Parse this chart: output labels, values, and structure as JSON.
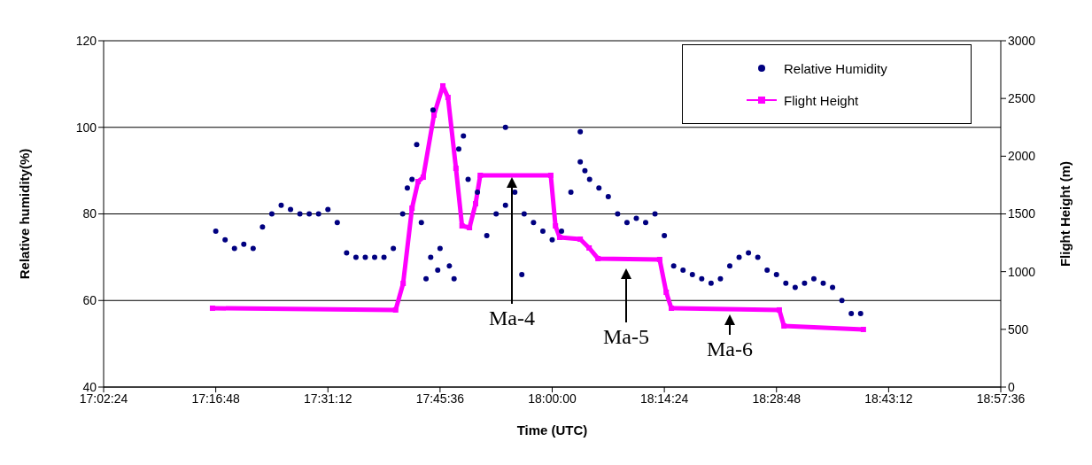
{
  "chart_data": {
    "type": "scatter",
    "xlabel": "Time (UTC)",
    "ylabel": "Relative humidity(%)",
    "y2label": "Flight Height (m)",
    "xlim": [
      17.04,
      18.96
    ],
    "xticks": [
      {
        "value": 17.04,
        "label": "17:02:24"
      },
      {
        "value": 17.28,
        "label": "17:16:48"
      },
      {
        "value": 17.52,
        "label": "17:31:12"
      },
      {
        "value": 17.76,
        "label": "17:45:36"
      },
      {
        "value": 18.0,
        "label": "18:00:00"
      },
      {
        "value": 18.24,
        "label": "18:14:24"
      },
      {
        "value": 18.48,
        "label": "18:28:48"
      },
      {
        "value": 18.72,
        "label": "18:43:12"
      },
      {
        "value": 18.96,
        "label": "18:57:36"
      }
    ],
    "ylim": [
      40,
      120
    ],
    "yticks": [
      40,
      60,
      80,
      100,
      120
    ],
    "y2lim": [
      0,
      3000
    ],
    "y2ticks": [
      0,
      500,
      1000,
      1500,
      2000,
      2500,
      3000
    ],
    "grid": "y",
    "legend": "top right",
    "series": [
      {
        "name": "Relative Humidity",
        "color": "#000080",
        "marker": "circle",
        "x": [
          17.28,
          17.3,
          17.32,
          17.34,
          17.36,
          17.38,
          17.4,
          17.42,
          17.44,
          17.46,
          17.48,
          17.5,
          17.52,
          17.54,
          17.56,
          17.58,
          17.6,
          17.62,
          17.64,
          17.66,
          17.68,
          17.7,
          17.72,
          17.74,
          17.76,
          17.78,
          17.8,
          17.82,
          17.84,
          17.86,
          17.88,
          17.9,
          17.92,
          17.94,
          17.96,
          17.98,
          18.0,
          18.02,
          18.04,
          18.06,
          18.08,
          18.1,
          18.12,
          18.14,
          18.16,
          18.18,
          18.2,
          18.22,
          18.24,
          18.26,
          18.28,
          18.3,
          18.32,
          18.34,
          18.36,
          18.38,
          18.4,
          18.42,
          18.44,
          18.46,
          18.48,
          18.5,
          18.52,
          18.54,
          18.56,
          18.58,
          18.6,
          18.62,
          18.64,
          18.66,
          17.71,
          17.745,
          17.73,
          17.79,
          17.81,
          17.9,
          17.935,
          18.06,
          18.07,
          17.69,
          17.755
        ],
        "values": [
          76,
          74,
          72,
          73,
          72,
          77,
          80,
          82,
          81,
          80,
          80,
          80,
          81,
          78,
          71,
          70,
          70,
          70,
          70,
          72,
          80,
          88,
          78,
          70,
          72,
          68,
          95,
          88,
          85,
          75,
          80,
          82,
          85,
          80,
          78,
          76,
          74,
          76,
          85,
          92,
          88,
          86,
          84,
          80,
          78,
          79,
          78,
          80,
          75,
          68,
          67,
          66,
          65,
          64,
          65,
          68,
          70,
          71,
          70,
          67,
          66,
          64,
          63,
          64,
          65,
          64,
          63,
          60,
          57,
          57,
          96,
          104,
          65,
          65,
          98,
          100,
          66,
          99,
          90,
          86,
          67
        ]
      },
      {
        "name": "Flight Height",
        "type": "line",
        "axis": "y2",
        "color": "#ff00ff",
        "marker": "square",
        "line_style": "solid",
        "x": [
          17.273,
          17.665,
          17.681,
          17.7,
          17.713,
          17.724,
          17.747,
          17.766,
          17.777,
          17.794,
          17.807,
          17.823,
          17.836,
          17.846,
          17.997,
          18.007,
          18.016,
          18.06,
          18.079,
          18.098,
          18.23,
          18.244,
          18.255,
          18.486,
          18.496,
          18.666
        ],
        "values": [
          683,
          668,
          898,
          1550,
          1780,
          1818,
          2356,
          2609,
          2509,
          1895,
          1396,
          1381,
          1588,
          1834,
          1834,
          1396,
          1297,
          1281,
          1205,
          1113,
          1105,
          821,
          683,
          668,
          529,
          499
        ]
      }
    ],
    "annotations": [
      "Ma-4",
      "Ma-5",
      "Ma-6"
    ]
  }
}
